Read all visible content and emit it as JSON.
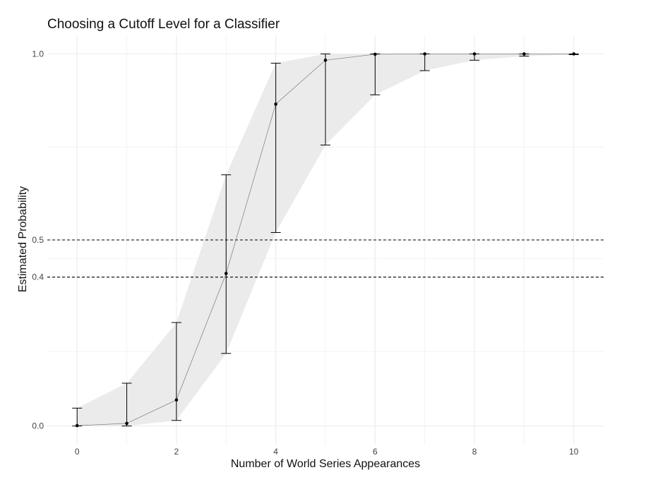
{
  "chart_data": {
    "type": "line",
    "title": "Choosing a Cutoff Level for a Classifier",
    "xlabel": "Number of World Series Appearances",
    "ylabel": "Estimated Probability",
    "xlim": [
      -0.6,
      10.6
    ],
    "ylim": [
      -0.05,
      1.05
    ],
    "x_ticks": [
      0,
      2,
      4,
      6,
      8,
      10
    ],
    "y_ticks": [
      0.0,
      0.4,
      0.5,
      1.0
    ],
    "x_tick_labels": [
      "0",
      "2",
      "4",
      "6",
      "8",
      "10"
    ],
    "y_tick_labels": [
      "0.0",
      "0.4",
      "0.5",
      "1.0"
    ],
    "x_minor_grid": [
      1,
      3,
      5,
      7,
      9
    ],
    "y_minor_grid": [
      0.2,
      0.45,
      0.75
    ],
    "grid": true,
    "legend": "none",
    "series": [
      {
        "x": [
          0,
          1,
          2,
          3,
          4,
          5,
          6,
          7,
          8,
          9,
          10
        ],
        "y": [
          0.001,
          0.007,
          0.07,
          0.41,
          0.865,
          0.983,
          0.999,
          1.0,
          1.0,
          1.0,
          1.0
        ],
        "lower": [
          0.0,
          0.0,
          0.015,
          0.195,
          0.52,
          0.755,
          0.89,
          0.955,
          0.983,
          0.994,
          0.998
        ],
        "upper": [
          0.048,
          0.115,
          0.278,
          0.675,
          0.975,
          1.0,
          1.0,
          1.0,
          1.0,
          1.0,
          1.0
        ]
      }
    ],
    "reference_lines": [
      {
        "axis": "y",
        "value": 0.5,
        "style": "dashed"
      },
      {
        "axis": "y",
        "value": 0.4,
        "style": "dashed"
      }
    ],
    "colors": {
      "ribbon": "#ebebeb",
      "line": "#7a7a7a",
      "point": "#000000",
      "errorbar": "#000000",
      "grid": "#ebebeb",
      "reference": "#000000"
    }
  }
}
